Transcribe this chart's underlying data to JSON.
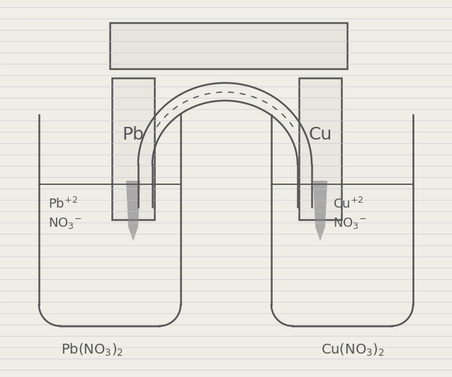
{
  "bg_color": "#f0ede6",
  "line_color": "#555555",
  "line_width": 1.8,
  "paper_line_color": "#b8c8d8",
  "paper_line_alpha": 0.7,
  "left_electrode_label": "Pb",
  "right_electrode_label": "Cu",
  "left_ion1": "Pb$^{+2}$",
  "left_ion2": "NO$_3$$^{-}$",
  "right_ion1": "Cu$^{+2}$",
  "right_ion2": "NO$_3$$^{-}$",
  "left_solution": "Pb(NO$_3$)$_2$",
  "right_solution": "Cu(NO$_3$)$_2$"
}
